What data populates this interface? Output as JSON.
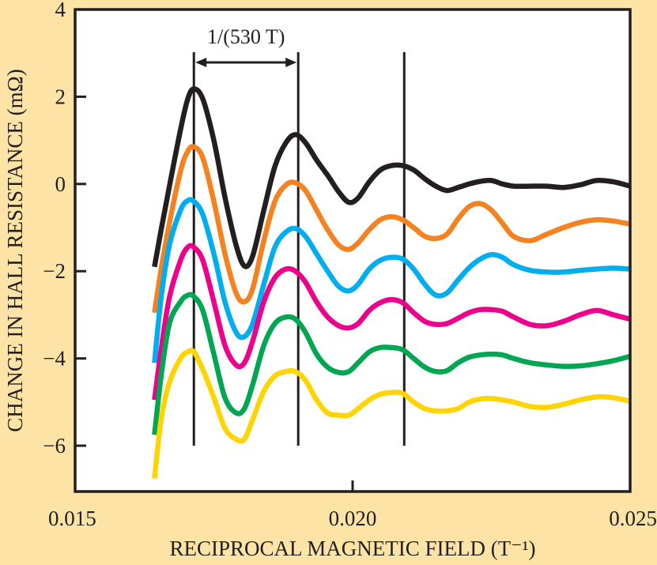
{
  "chart_data": {
    "type": "line",
    "title": "",
    "xlabel": "RECIPROCAL MAGNETIC FIELD (T⁻¹)",
    "ylabel": "CHANGE IN HALL RESISTANCE (mΩ)",
    "xlim": [
      0.015,
      0.025
    ],
    "ylim": [
      -7.05,
      4
    ],
    "x_ticks": [
      0.015,
      0.02,
      0.025
    ],
    "x_tick_labels": [
      "0.015",
      "0.020",
      "0.025"
    ],
    "y_ticks": [
      4,
      2,
      0,
      -2,
      -4,
      -6
    ],
    "y_tick_labels": [
      "4",
      "2",
      "0",
      "−2",
      "−4",
      "−6"
    ],
    "grid": false,
    "legend": "none",
    "background_color": "#fde3a5",
    "plot_background": "#ffffff",
    "reference_lines": {
      "x": [
        0.01714,
        0.01902,
        0.02093
      ],
      "y_range": [
        -6.0,
        3.0
      ]
    },
    "annotation": {
      "text": "1/(530 T)",
      "x_from": 0.01714,
      "x_to": 0.01902,
      "y": 2.77
    },
    "series": [
      {
        "name": "curve-black",
        "color": "#231f20",
        "x": [
          0.01643,
          0.01655,
          0.0167,
          0.0169,
          0.01703,
          0.01714,
          0.0173,
          0.0175,
          0.0177,
          0.0179,
          0.01805,
          0.0182,
          0.0184,
          0.0186,
          0.0188,
          0.01897,
          0.01915,
          0.01935,
          0.01955,
          0.01975,
          0.01993,
          0.0201,
          0.0203,
          0.0205,
          0.0207,
          0.0209,
          0.0211,
          0.0213,
          0.0215,
          0.0217,
          0.0219,
          0.0221,
          0.0223,
          0.0225,
          0.0227,
          0.0229,
          0.0232,
          0.0235,
          0.0238,
          0.0241,
          0.0244,
          0.0247,
          0.025
        ],
        "y": [
          -1.9,
          -1.05,
          -0.05,
          1.25,
          1.95,
          2.18,
          1.95,
          1.0,
          -0.3,
          -1.4,
          -1.88,
          -1.65,
          -0.6,
          0.4,
          0.95,
          1.13,
          0.95,
          0.55,
          0.2,
          -0.18,
          -0.42,
          -0.32,
          0.05,
          0.32,
          0.42,
          0.42,
          0.32,
          0.12,
          -0.05,
          -0.15,
          -0.08,
          0.0,
          0.06,
          0.08,
          0.0,
          -0.05,
          -0.05,
          -0.05,
          -0.08,
          -0.02,
          0.08,
          0.05,
          -0.05
        ]
      },
      {
        "name": "curve-orange",
        "color": "#f58220",
        "x": [
          0.01643,
          0.01655,
          0.0167,
          0.0169,
          0.01703,
          0.01714,
          0.0173,
          0.0175,
          0.0177,
          0.0179,
          0.01805,
          0.0182,
          0.0184,
          0.0186,
          0.0188,
          0.01897,
          0.01915,
          0.01935,
          0.01955,
          0.01975,
          0.01993,
          0.0201,
          0.0203,
          0.0205,
          0.0207,
          0.0209,
          0.0211,
          0.0213,
          0.0215,
          0.0217,
          0.0219,
          0.0221,
          0.0223,
          0.0225,
          0.0227,
          0.0229,
          0.0232,
          0.0235,
          0.0238,
          0.0241,
          0.0244,
          0.0247,
          0.025
        ],
        "y": [
          -2.95,
          -1.95,
          -0.9,
          0.3,
          0.75,
          0.85,
          0.6,
          -0.4,
          -1.6,
          -2.5,
          -2.7,
          -2.4,
          -1.3,
          -0.4,
          -0.02,
          0.03,
          -0.15,
          -0.6,
          -1.05,
          -1.4,
          -1.5,
          -1.35,
          -1.05,
          -0.82,
          -0.75,
          -0.82,
          -1.0,
          -1.2,
          -1.25,
          -1.15,
          -0.8,
          -0.52,
          -0.45,
          -0.6,
          -0.9,
          -1.2,
          -1.3,
          -1.15,
          -1.0,
          -0.88,
          -0.82,
          -0.85,
          -0.92
        ]
      },
      {
        "name": "curve-cyan",
        "color": "#00aeef",
        "x": [
          0.01643,
          0.01655,
          0.0167,
          0.0169,
          0.01703,
          0.01714,
          0.0173,
          0.0175,
          0.0177,
          0.0179,
          0.01805,
          0.0182,
          0.0184,
          0.0186,
          0.0188,
          0.01897,
          0.01915,
          0.01935,
          0.01955,
          0.01975,
          0.01993,
          0.0201,
          0.0203,
          0.0205,
          0.0207,
          0.0209,
          0.0211,
          0.0213,
          0.0215,
          0.0217,
          0.0219,
          0.0221,
          0.0223,
          0.0225,
          0.0227,
          0.0229,
          0.0232,
          0.0235,
          0.0238,
          0.0241,
          0.0244,
          0.0247,
          0.025
        ],
        "y": [
          -4.1,
          -2.6,
          -1.4,
          -0.6,
          -0.38,
          -0.4,
          -0.7,
          -1.6,
          -2.7,
          -3.4,
          -3.5,
          -3.2,
          -2.3,
          -1.45,
          -1.1,
          -1.02,
          -1.2,
          -1.6,
          -2.0,
          -2.35,
          -2.45,
          -2.3,
          -1.95,
          -1.75,
          -1.68,
          -1.72,
          -1.95,
          -2.3,
          -2.55,
          -2.5,
          -2.2,
          -1.92,
          -1.72,
          -1.62,
          -1.68,
          -1.85,
          -1.98,
          -2.02,
          -2.02,
          -1.98,
          -1.95,
          -1.93,
          -1.95
        ]
      },
      {
        "name": "curve-magenta",
        "color": "#ec008c",
        "x": [
          0.01643,
          0.01655,
          0.0167,
          0.0169,
          0.01703,
          0.01714,
          0.0173,
          0.0175,
          0.0177,
          0.0179,
          0.01805,
          0.0182,
          0.0184,
          0.0186,
          0.0188,
          0.01897,
          0.01915,
          0.01935,
          0.01955,
          0.01975,
          0.01993,
          0.0201,
          0.0203,
          0.0205,
          0.0207,
          0.0209,
          0.0211,
          0.0213,
          0.0215,
          0.0217,
          0.0219,
          0.0221,
          0.0223,
          0.0225,
          0.0227,
          0.0229,
          0.0232,
          0.0235,
          0.0238,
          0.0241,
          0.0244,
          0.0247,
          0.025
        ],
        "y": [
          -4.95,
          -3.8,
          -2.6,
          -1.75,
          -1.45,
          -1.45,
          -1.75,
          -2.7,
          -3.7,
          -4.15,
          -4.1,
          -3.6,
          -2.7,
          -2.15,
          -1.95,
          -2.0,
          -2.25,
          -2.7,
          -3.05,
          -3.25,
          -3.3,
          -3.2,
          -2.9,
          -2.72,
          -2.65,
          -2.72,
          -2.95,
          -3.15,
          -3.22,
          -3.2,
          -3.08,
          -2.95,
          -2.88,
          -2.88,
          -2.92,
          -3.05,
          -3.22,
          -3.25,
          -3.15,
          -3.0,
          -2.9,
          -3.0,
          -3.1
        ]
      },
      {
        "name": "curve-green",
        "color": "#00a651",
        "x": [
          0.01643,
          0.01655,
          0.0167,
          0.0169,
          0.01703,
          0.01714,
          0.0173,
          0.0175,
          0.0177,
          0.0179,
          0.01805,
          0.0182,
          0.0184,
          0.0186,
          0.0188,
          0.01897,
          0.01915,
          0.01935,
          0.01955,
          0.01975,
          0.01993,
          0.0201,
          0.0203,
          0.0205,
          0.0207,
          0.0209,
          0.0211,
          0.0213,
          0.0215,
          0.0217,
          0.0219,
          0.0221,
          0.0223,
          0.0225,
          0.0227,
          0.0229,
          0.0232,
          0.0235,
          0.0238,
          0.0241,
          0.0244,
          0.0247,
          0.025
        ],
        "y": [
          -5.75,
          -4.4,
          -3.2,
          -2.7,
          -2.55,
          -2.58,
          -2.9,
          -3.9,
          -4.9,
          -5.25,
          -5.15,
          -4.6,
          -3.7,
          -3.2,
          -3.05,
          -3.1,
          -3.4,
          -3.9,
          -4.2,
          -4.32,
          -4.3,
          -4.1,
          -3.85,
          -3.75,
          -3.75,
          -3.8,
          -4.0,
          -4.2,
          -4.3,
          -4.28,
          -4.1,
          -3.97,
          -3.92,
          -3.9,
          -3.92,
          -4.0,
          -4.1,
          -4.15,
          -4.18,
          -4.17,
          -4.12,
          -4.05,
          -3.95
        ]
      },
      {
        "name": "curve-yellow",
        "color": "#ffd400",
        "x": [
          0.01643,
          0.01655,
          0.0167,
          0.0169,
          0.01703,
          0.01714,
          0.0173,
          0.0175,
          0.0177,
          0.0179,
          0.01805,
          0.0182,
          0.0184,
          0.0186,
          0.0188,
          0.01897,
          0.01915,
          0.01935,
          0.01955,
          0.01975,
          0.01993,
          0.0201,
          0.0203,
          0.0205,
          0.0207,
          0.0209,
          0.0211,
          0.0213,
          0.0215,
          0.0217,
          0.0219,
          0.0221,
          0.0223,
          0.0225,
          0.0227,
          0.0229,
          0.0232,
          0.0235,
          0.0238,
          0.0241,
          0.0244,
          0.0247,
          0.025
        ],
        "y": [
          -6.75,
          -5.4,
          -4.55,
          -4.0,
          -3.85,
          -3.85,
          -4.25,
          -4.9,
          -5.6,
          -5.85,
          -5.85,
          -5.4,
          -4.75,
          -4.4,
          -4.3,
          -4.3,
          -4.5,
          -4.95,
          -5.25,
          -5.3,
          -5.3,
          -5.15,
          -4.95,
          -4.82,
          -4.78,
          -4.8,
          -5.0,
          -5.15,
          -5.2,
          -5.2,
          -5.15,
          -5.0,
          -4.93,
          -4.92,
          -4.95,
          -5.0,
          -5.1,
          -5.12,
          -5.05,
          -4.95,
          -4.88,
          -4.9,
          -4.98
        ]
      }
    ]
  }
}
